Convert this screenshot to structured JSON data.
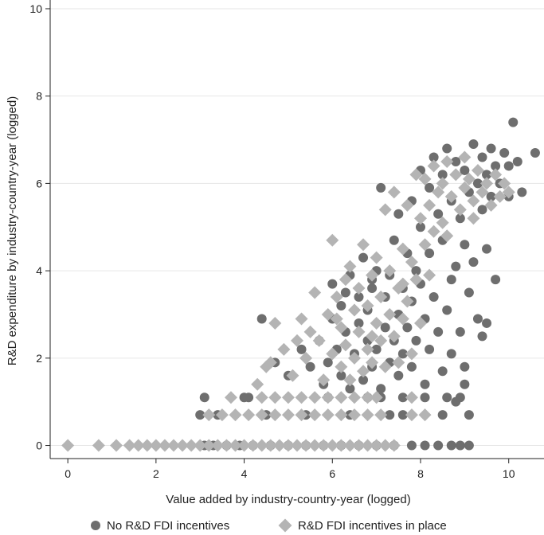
{
  "chart_data": {
    "type": "scatter",
    "title": "",
    "xlabel": "Value added by industry-country-year (logged)",
    "ylabel": "R&D expenditure by industry-country-year (logged)",
    "xlim": [
      -0.4,
      10.8
    ],
    "ylim": [
      -0.3,
      10.2
    ],
    "x_ticks": [
      0,
      2,
      4,
      6,
      8,
      10
    ],
    "y_ticks": [
      0,
      2,
      4,
      6,
      8,
      10
    ],
    "x_tick_labels": [
      "0",
      "2",
      "4",
      "6",
      "8",
      "10"
    ],
    "y_tick_labels": [
      "0",
      "2",
      "4",
      "6",
      "8",
      "10"
    ],
    "grid": "horizontal",
    "legend_position": "bottom",
    "colors": {
      "no_incentives": "#6e6e6e",
      "incentives": "#b4b4b4"
    },
    "series": [
      {
        "name": "No R&D FDI incentives",
        "marker": "circle",
        "points": [
          [
            3.1,
            0
          ],
          [
            3.3,
            0
          ],
          [
            3.6,
            0
          ],
          [
            3.9,
            0
          ],
          [
            4.2,
            0
          ],
          [
            4.6,
            0
          ],
          [
            5.0,
            0
          ],
          [
            5.4,
            0
          ],
          [
            5.8,
            0
          ],
          [
            6.2,
            0
          ],
          [
            6.6,
            0
          ],
          [
            7.0,
            0
          ],
          [
            7.4,
            0
          ],
          [
            7.8,
            0
          ],
          [
            8.1,
            0
          ],
          [
            8.4,
            0
          ],
          [
            8.7,
            0
          ],
          [
            8.9,
            0
          ],
          [
            9.1,
            0
          ],
          [
            3.1,
            1.1
          ],
          [
            4.0,
            1.1
          ],
          [
            4.1,
            1.1
          ],
          [
            5.9,
            1.1
          ],
          [
            6.8,
            1.1
          ],
          [
            7.1,
            1.1
          ],
          [
            7.6,
            1.1
          ],
          [
            8.1,
            1.1
          ],
          [
            8.6,
            1.1
          ],
          [
            8.9,
            1.1
          ],
          [
            3.0,
            0.7
          ],
          [
            3.4,
            0.7
          ],
          [
            4.5,
            0.7
          ],
          [
            5.4,
            0.7
          ],
          [
            6.4,
            0.7
          ],
          [
            7.3,
            0.7
          ],
          [
            7.6,
            0.7
          ],
          [
            8.5,
            0.7
          ],
          [
            9.1,
            0.7
          ],
          [
            4.4,
            2.9
          ],
          [
            4.7,
            1.9
          ],
          [
            5.0,
            1.6
          ],
          [
            5.3,
            2.2
          ],
          [
            5.5,
            1.8
          ],
          [
            5.7,
            2.4
          ],
          [
            5.8,
            1.4
          ],
          [
            5.9,
            1.9
          ],
          [
            6.0,
            2.9
          ],
          [
            6.0,
            3.7
          ],
          [
            6.1,
            2.2
          ],
          [
            6.2,
            1.6
          ],
          [
            6.2,
            3.2
          ],
          [
            6.3,
            2.6
          ],
          [
            6.4,
            1.3
          ],
          [
            6.4,
            3.9
          ],
          [
            6.5,
            2.1
          ],
          [
            6.6,
            2.8
          ],
          [
            6.6,
            3.4
          ],
          [
            6.7,
            1.5
          ],
          [
            6.7,
            4.3
          ],
          [
            6.8,
            2.4
          ],
          [
            6.8,
            3.1
          ],
          [
            6.9,
            1.8
          ],
          [
            6.9,
            3.6
          ],
          [
            7.0,
            2.2
          ],
          [
            7.0,
            4.0
          ],
          [
            7.1,
            5.9
          ],
          [
            7.1,
            1.3
          ],
          [
            7.2,
            2.7
          ],
          [
            7.2,
            3.4
          ],
          [
            7.3,
            1.9
          ],
          [
            7.3,
            3.9
          ],
          [
            7.4,
            2.4
          ],
          [
            7.4,
            4.7
          ],
          [
            7.5,
            3.0
          ],
          [
            7.5,
            1.6
          ],
          [
            7.6,
            3.6
          ],
          [
            7.6,
            2.1
          ],
          [
            7.7,
            4.4
          ],
          [
            7.7,
            2.7
          ],
          [
            7.8,
            5.6
          ],
          [
            7.8,
            3.3
          ],
          [
            7.8,
            1.8
          ],
          [
            7.9,
            4.0
          ],
          [
            7.9,
            2.4
          ],
          [
            8.0,
            6.3
          ],
          [
            8.0,
            5.0
          ],
          [
            8.0,
            3.7
          ],
          [
            8.1,
            2.9
          ],
          [
            8.1,
            1.4
          ],
          [
            8.2,
            5.9
          ],
          [
            8.2,
            4.4
          ],
          [
            8.2,
            2.2
          ],
          [
            8.3,
            6.6
          ],
          [
            8.3,
            3.4
          ],
          [
            8.4,
            5.3
          ],
          [
            8.4,
            2.6
          ],
          [
            8.5,
            6.2
          ],
          [
            8.5,
            4.7
          ],
          [
            8.5,
            1.7
          ],
          [
            8.6,
            3.1
          ],
          [
            8.6,
            6.8
          ],
          [
            8.7,
            5.6
          ],
          [
            8.7,
            3.8
          ],
          [
            8.7,
            2.1
          ],
          [
            8.8,
            6.5
          ],
          [
            8.8,
            4.1
          ],
          [
            8.9,
            5.2
          ],
          [
            8.9,
            2.6
          ],
          [
            9.0,
            6.3
          ],
          [
            9.0,
            4.6
          ],
          [
            9.0,
            1.8
          ],
          [
            9.1,
            5.8
          ],
          [
            9.1,
            3.5
          ],
          [
            9.2,
            6.9
          ],
          [
            9.2,
            4.2
          ],
          [
            9.3,
            6.0
          ],
          [
            9.3,
            2.9
          ],
          [
            9.4,
            6.6
          ],
          [
            9.4,
            5.4
          ],
          [
            9.4,
            2.5
          ],
          [
            9.5,
            6.2
          ],
          [
            9.5,
            4.5
          ],
          [
            9.6,
            6.8
          ],
          [
            9.6,
            5.7
          ],
          [
            9.7,
            6.4
          ],
          [
            9.7,
            3.8
          ],
          [
            9.8,
            6.0
          ],
          [
            9.9,
            6.7
          ],
          [
            10.0,
            6.4
          ],
          [
            10.0,
            5.7
          ],
          [
            10.1,
            7.4
          ],
          [
            10.2,
            6.5
          ],
          [
            10.3,
            5.8
          ],
          [
            10.6,
            6.7
          ],
          [
            9.5,
            2.8
          ],
          [
            9.0,
            1.4
          ],
          [
            8.8,
            1.0
          ],
          [
            7.5,
            5.3
          ],
          [
            6.9,
            3.8
          ],
          [
            6.3,
            3.5
          ]
        ]
      },
      {
        "name": "R&D FDI incentives in place",
        "marker": "diamond",
        "points": [
          [
            0,
            0
          ],
          [
            0.7,
            0
          ],
          [
            1.1,
            0
          ],
          [
            1.4,
            0
          ],
          [
            1.6,
            0
          ],
          [
            1.8,
            0
          ],
          [
            2.0,
            0
          ],
          [
            2.2,
            0
          ],
          [
            2.4,
            0
          ],
          [
            2.6,
            0
          ],
          [
            2.8,
            0
          ],
          [
            3.0,
            0
          ],
          [
            3.2,
            0
          ],
          [
            3.4,
            0
          ],
          [
            3.6,
            0
          ],
          [
            3.8,
            0
          ],
          [
            4.0,
            0
          ],
          [
            4.2,
            0
          ],
          [
            4.4,
            0
          ],
          [
            4.6,
            0
          ],
          [
            4.8,
            0
          ],
          [
            5.0,
            0
          ],
          [
            5.2,
            0
          ],
          [
            5.4,
            0
          ],
          [
            5.6,
            0
          ],
          [
            5.8,
            0
          ],
          [
            6.0,
            0
          ],
          [
            6.2,
            0
          ],
          [
            6.4,
            0
          ],
          [
            6.6,
            0
          ],
          [
            6.8,
            0
          ],
          [
            7.0,
            0
          ],
          [
            7.2,
            0
          ],
          [
            7.4,
            0
          ],
          [
            3.2,
            0.7
          ],
          [
            3.5,
            0.7
          ],
          [
            3.8,
            0.7
          ],
          [
            4.1,
            0.7
          ],
          [
            4.4,
            0.7
          ],
          [
            4.7,
            0.7
          ],
          [
            5.0,
            0.7
          ],
          [
            5.3,
            0.7
          ],
          [
            5.6,
            0.7
          ],
          [
            5.9,
            0.7
          ],
          [
            6.2,
            0.7
          ],
          [
            6.5,
            0.7
          ],
          [
            6.8,
            0.7
          ],
          [
            7.1,
            0.7
          ],
          [
            7.8,
            0.7
          ],
          [
            8.1,
            0.7
          ],
          [
            3.7,
            1.1
          ],
          [
            4.4,
            1.1
          ],
          [
            4.7,
            1.1
          ],
          [
            5.0,
            1.1
          ],
          [
            5.3,
            1.1
          ],
          [
            5.6,
            1.1
          ],
          [
            5.9,
            1.1
          ],
          [
            6.2,
            1.1
          ],
          [
            6.5,
            1.1
          ],
          [
            6.8,
            1.1
          ],
          [
            7.0,
            1.1
          ],
          [
            7.8,
            1.1
          ],
          [
            4.3,
            1.4
          ],
          [
            4.5,
            1.8
          ],
          [
            4.7,
            2.8
          ],
          [
            4.9,
            2.2
          ],
          [
            5.1,
            1.6
          ],
          [
            5.3,
            2.9
          ],
          [
            5.4,
            2.0
          ],
          [
            5.6,
            3.5
          ],
          [
            5.7,
            2.4
          ],
          [
            5.8,
            1.5
          ],
          [
            5.9,
            3.0
          ],
          [
            6.0,
            2.1
          ],
          [
            6.0,
            4.7
          ],
          [
            6.1,
            3.4
          ],
          [
            6.2,
            1.8
          ],
          [
            6.2,
            2.7
          ],
          [
            6.3,
            3.8
          ],
          [
            6.3,
            2.3
          ],
          [
            6.4,
            1.5
          ],
          [
            6.4,
            4.1
          ],
          [
            6.5,
            3.1
          ],
          [
            6.5,
            2.0
          ],
          [
            6.6,
            3.6
          ],
          [
            6.6,
            2.6
          ],
          [
            6.7,
            1.7
          ],
          [
            6.7,
            4.6
          ],
          [
            6.8,
            3.2
          ],
          [
            6.8,
            2.2
          ],
          [
            6.9,
            3.9
          ],
          [
            6.9,
            1.9
          ],
          [
            7.0,
            2.8
          ],
          [
            7.0,
            4.3
          ],
          [
            7.1,
            3.4
          ],
          [
            7.1,
            2.4
          ],
          [
            7.2,
            5.4
          ],
          [
            7.2,
            1.8
          ],
          [
            7.3,
            3.0
          ],
          [
            7.3,
            4.0
          ],
          [
            7.4,
            2.5
          ],
          [
            7.4,
            5.8
          ],
          [
            7.5,
            3.6
          ],
          [
            7.5,
            1.9
          ],
          [
            7.6,
            4.5
          ],
          [
            7.6,
            2.9
          ],
          [
            7.7,
            5.5
          ],
          [
            7.7,
            3.3
          ],
          [
            7.8,
            4.2
          ],
          [
            7.8,
            2.1
          ],
          [
            7.9,
            6.2
          ],
          [
            7.9,
            3.8
          ],
          [
            8.0,
            5.2
          ],
          [
            8.0,
            2.8
          ],
          [
            8.1,
            6.1
          ],
          [
            8.1,
            4.6
          ],
          [
            8.2,
            5.5
          ],
          [
            8.3,
            6.4
          ],
          [
            8.3,
            4.9
          ],
          [
            8.4,
            5.8
          ],
          [
            8.5,
            6.0
          ],
          [
            8.5,
            5.1
          ],
          [
            8.6,
            6.5
          ],
          [
            8.7,
            5.7
          ],
          [
            8.8,
            6.2
          ],
          [
            8.9,
            5.4
          ],
          [
            9.0,
            6.6
          ],
          [
            9.0,
            5.9
          ],
          [
            9.1,
            6.1
          ],
          [
            9.2,
            5.6
          ],
          [
            9.3,
            6.3
          ],
          [
            9.4,
            5.8
          ],
          [
            9.5,
            6.0
          ],
          [
            9.6,
            5.5
          ],
          [
            9.7,
            6.2
          ],
          [
            9.8,
            5.7
          ],
          [
            9.9,
            6.0
          ],
          [
            10.0,
            5.8
          ],
          [
            9.2,
            5.2
          ],
          [
            8.6,
            4.8
          ],
          [
            8.2,
            3.9
          ],
          [
            7.6,
            3.7
          ],
          [
            6.9,
            2.5
          ],
          [
            6.1,
            2.9
          ],
          [
            5.5,
            2.6
          ],
          [
            4.6,
            1.9
          ],
          [
            5.2,
            2.4
          ]
        ]
      }
    ]
  }
}
